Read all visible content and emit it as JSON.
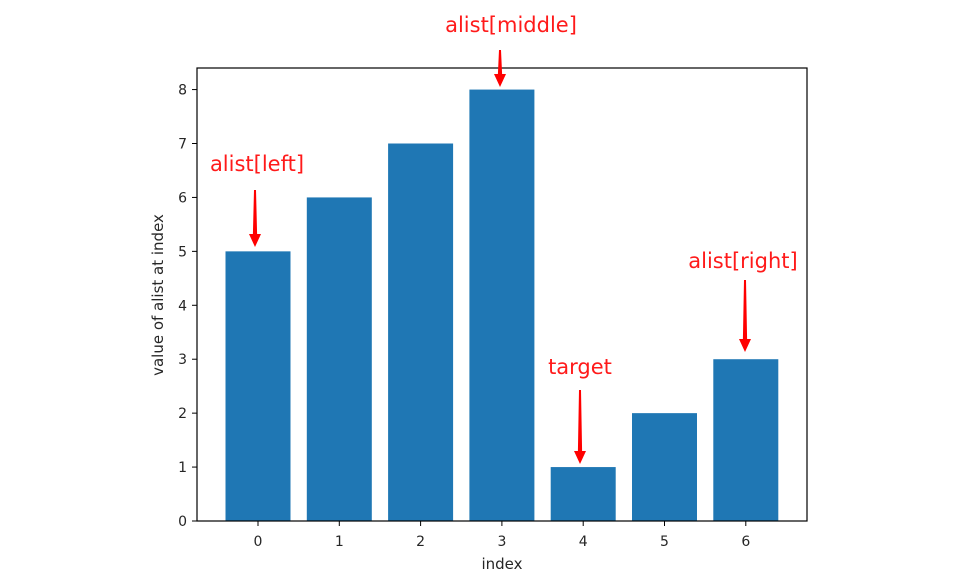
{
  "chart_data": {
    "type": "bar",
    "categories": [
      "0",
      "1",
      "2",
      "3",
      "4",
      "5",
      "6"
    ],
    "values": [
      5,
      6,
      7,
      8,
      1,
      2,
      3
    ],
    "title": "",
    "xlabel": "index",
    "ylabel": "value of alist at index",
    "ylim": [
      0,
      8.4
    ],
    "yticks": [
      "0",
      "1",
      "2",
      "3",
      "4",
      "5",
      "6",
      "7",
      "8"
    ],
    "grid": false,
    "bar_color": "#1f77b4",
    "annotations": [
      {
        "text": "alist[left]",
        "index": 0,
        "color": "#ff0000"
      },
      {
        "text": "alist[middle]",
        "index": 3,
        "color": "#ff0000"
      },
      {
        "text": "target",
        "index": 4,
        "color": "#ff0000"
      },
      {
        "text": "alist[right]",
        "index": 6,
        "color": "#ff0000"
      }
    ]
  }
}
